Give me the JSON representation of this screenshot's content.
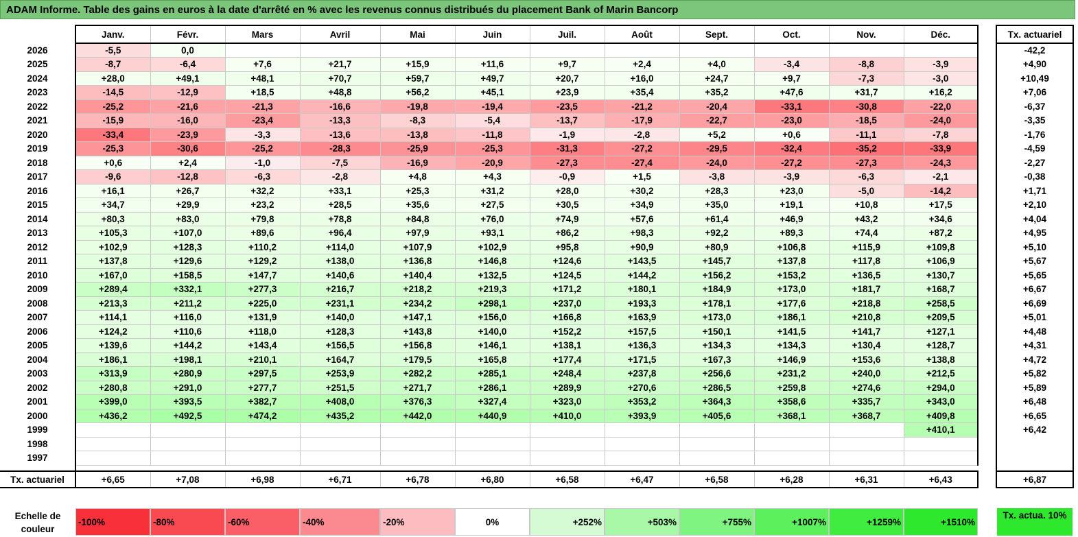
{
  "title": "ADAM Informe. Table des gains en euros à la date d'arrêté en % avec les revenus connus distribués du placement Bank of Marin Bancorp",
  "months": [
    "Janv.",
    "Févr.",
    "Mars",
    "Avril",
    "Mai",
    "Juin",
    "Juil.",
    "Août",
    "Sept.",
    "Oct.",
    "Nov.",
    "Déc."
  ],
  "actuarial_header": "Tx. actuariel",
  "total_label": "Tx. actuariel",
  "rows": [
    {
      "year": "2026",
      "values": [
        "-5,5",
        "0,0",
        "",
        "",
        "",
        "",
        "",
        "",
        "",
        "",
        "",
        ""
      ],
      "rate": "-42,2"
    },
    {
      "year": "2025",
      "values": [
        "-8,7",
        "-6,4",
        "+7,6",
        "+21,7",
        "+15,9",
        "+11,6",
        "+9,7",
        "+2,4",
        "+4,0",
        "-3,4",
        "-8,8",
        "-3,9"
      ],
      "rate": "+4,90"
    },
    {
      "year": "2024",
      "values": [
        "+28,0",
        "+49,1",
        "+48,1",
        "+70,7",
        "+59,7",
        "+49,7",
        "+20,7",
        "+16,0",
        "+24,7",
        "+9,7",
        "-7,3",
        "-3,0"
      ],
      "rate": "+10,49"
    },
    {
      "year": "2023",
      "values": [
        "-14,5",
        "-12,9",
        "+18,5",
        "+48,8",
        "+56,2",
        "+45,1",
        "+23,9",
        "+35,4",
        "+35,2",
        "+47,6",
        "+31,7",
        "+16,2"
      ],
      "rate": "+7,06"
    },
    {
      "year": "2022",
      "values": [
        "-25,2",
        "-21,6",
        "-21,3",
        "-16,6",
        "-19,8",
        "-19,4",
        "-23,5",
        "-21,2",
        "-20,4",
        "-33,1",
        "-30,8",
        "-22,0"
      ],
      "rate": "-6,37"
    },
    {
      "year": "2021",
      "values": [
        "-15,9",
        "-16,0",
        "-23,4",
        "-13,3",
        "-8,3",
        "-5,4",
        "-13,7",
        "-17,9",
        "-22,7",
        "-23,0",
        "-18,5",
        "-24,0"
      ],
      "rate": "-3,35"
    },
    {
      "year": "2020",
      "values": [
        "-33,4",
        "-23,9",
        "-3,3",
        "-13,6",
        "-13,8",
        "-11,8",
        "-1,9",
        "-2,8",
        "+5,2",
        "+0,6",
        "-11,1",
        "-7,8"
      ],
      "rate": "-1,76"
    },
    {
      "year": "2019",
      "values": [
        "-25,3",
        "-30,6",
        "-25,2",
        "-28,3",
        "-25,9",
        "-25,3",
        "-31,3",
        "-27,2",
        "-29,5",
        "-32,4",
        "-35,2",
        "-33,9"
      ],
      "rate": "-4,59"
    },
    {
      "year": "2018",
      "values": [
        "+0,6",
        "+2,4",
        "-1,0",
        "-7,5",
        "-16,9",
        "-20,9",
        "-27,3",
        "-27,4",
        "-24,0",
        "-27,2",
        "-27,3",
        "-24,3"
      ],
      "rate": "-2,27"
    },
    {
      "year": "2017",
      "values": [
        "-9,6",
        "-12,8",
        "-6,3",
        "-2,8",
        "+4,8",
        "+4,3",
        "-0,9",
        "+1,5",
        "-3,8",
        "-3,9",
        "-6,3",
        "-2,1"
      ],
      "rate": "-0,38"
    },
    {
      "year": "2016",
      "values": [
        "+16,1",
        "+26,7",
        "+32,2",
        "+33,1",
        "+25,3",
        "+31,2",
        "+28,0",
        "+30,2",
        "+28,3",
        "+23,0",
        "-5,0",
        "-14,2"
      ],
      "rate": "+1,71"
    },
    {
      "year": "2015",
      "values": [
        "+34,7",
        "+29,9",
        "+23,2",
        "+28,5",
        "+35,6",
        "+27,5",
        "+30,5",
        "+34,9",
        "+35,0",
        "+19,1",
        "+10,8",
        "+17,5"
      ],
      "rate": "+2,10"
    },
    {
      "year": "2014",
      "values": [
        "+80,3",
        "+83,0",
        "+79,8",
        "+78,8",
        "+84,8",
        "+76,0",
        "+74,9",
        "+57,6",
        "+61,4",
        "+46,9",
        "+43,2",
        "+34,6"
      ],
      "rate": "+4,04"
    },
    {
      "year": "2013",
      "values": [
        "+105,3",
        "+107,0",
        "+89,6",
        "+96,4",
        "+97,9",
        "+93,1",
        "+86,2",
        "+98,3",
        "+92,2",
        "+89,3",
        "+74,4",
        "+87,2"
      ],
      "rate": "+4,95"
    },
    {
      "year": "2012",
      "values": [
        "+102,9",
        "+128,3",
        "+110,2",
        "+114,0",
        "+107,9",
        "+102,9",
        "+95,8",
        "+90,9",
        "+80,9",
        "+106,8",
        "+115,9",
        "+109,8"
      ],
      "rate": "+5,10"
    },
    {
      "year": "2011",
      "values": [
        "+137,8",
        "+129,6",
        "+129,2",
        "+138,0",
        "+136,8",
        "+146,8",
        "+124,6",
        "+143,5",
        "+145,7",
        "+137,8",
        "+117,8",
        "+106,9"
      ],
      "rate": "+5,67"
    },
    {
      "year": "2010",
      "values": [
        "+167,0",
        "+158,5",
        "+147,7",
        "+140,6",
        "+140,4",
        "+132,5",
        "+124,5",
        "+144,2",
        "+156,2",
        "+153,2",
        "+136,5",
        "+130,7"
      ],
      "rate": "+5,65"
    },
    {
      "year": "2009",
      "values": [
        "+289,4",
        "+332,1",
        "+277,3",
        "+216,7",
        "+218,2",
        "+219,3",
        "+171,2",
        "+180,1",
        "+184,9",
        "+173,0",
        "+181,7",
        "+168,7"
      ],
      "rate": "+6,67"
    },
    {
      "year": "2008",
      "values": [
        "+213,3",
        "+211,2",
        "+225,0",
        "+231,1",
        "+234,2",
        "+298,1",
        "+237,0",
        "+193,3",
        "+178,1",
        "+177,6",
        "+218,8",
        "+258,5"
      ],
      "rate": "+6,69"
    },
    {
      "year": "2007",
      "values": [
        "+114,1",
        "+116,0",
        "+131,9",
        "+140,0",
        "+147,1",
        "+156,0",
        "+166,8",
        "+163,9",
        "+173,0",
        "+186,1",
        "+210,8",
        "+209,5"
      ],
      "rate": "+5,01"
    },
    {
      "year": "2006",
      "values": [
        "+124,2",
        "+110,6",
        "+118,0",
        "+128,3",
        "+143,8",
        "+140,0",
        "+152,2",
        "+157,5",
        "+150,1",
        "+141,5",
        "+141,7",
        "+127,1"
      ],
      "rate": "+4,48"
    },
    {
      "year": "2005",
      "values": [
        "+139,6",
        "+144,2",
        "+143,4",
        "+156,5",
        "+156,8",
        "+146,1",
        "+138,1",
        "+136,3",
        "+134,3",
        "+134,3",
        "+130,4",
        "+128,7"
      ],
      "rate": "+4,31"
    },
    {
      "year": "2004",
      "values": [
        "+186,1",
        "+198,1",
        "+210,1",
        "+164,7",
        "+179,5",
        "+165,8",
        "+177,4",
        "+171,5",
        "+167,3",
        "+146,9",
        "+153,6",
        "+138,8"
      ],
      "rate": "+4,72"
    },
    {
      "year": "2003",
      "values": [
        "+313,9",
        "+280,9",
        "+297,5",
        "+253,9",
        "+282,2",
        "+285,1",
        "+248,4",
        "+237,8",
        "+256,6",
        "+231,2",
        "+240,0",
        "+212,5"
      ],
      "rate": "+5,82"
    },
    {
      "year": "2002",
      "values": [
        "+280,8",
        "+291,0",
        "+277,7",
        "+251,5",
        "+271,7",
        "+286,1",
        "+289,9",
        "+270,6",
        "+286,5",
        "+259,8",
        "+274,6",
        "+294,0"
      ],
      "rate": "+5,89"
    },
    {
      "year": "2001",
      "values": [
        "+399,0",
        "+393,5",
        "+382,7",
        "+408,0",
        "+376,3",
        "+327,4",
        "+323,0",
        "+353,2",
        "+364,3",
        "+358,6",
        "+335,7",
        "+343,0"
      ],
      "rate": "+6,48"
    },
    {
      "year": "2000",
      "values": [
        "+436,2",
        "+492,5",
        "+474,2",
        "+435,2",
        "+442,0",
        "+440,9",
        "+410,0",
        "+393,9",
        "+405,6",
        "+368,1",
        "+368,7",
        "+409,8"
      ],
      "rate": "+6,65"
    },
    {
      "year": "1999",
      "values": [
        "",
        "",
        "",
        "",
        "",
        "",
        "",
        "",
        "",
        "",
        "",
        "+410,1"
      ],
      "rate": "+6,42"
    },
    {
      "year": "1998",
      "values": [
        "",
        "",
        "",
        "",
        "",
        "",
        "",
        "",
        "",
        "",
        "",
        ""
      ],
      "rate": ""
    },
    {
      "year": "1997",
      "values": [
        "",
        "",
        "",
        "",
        "",
        "",
        "",
        "",
        "",
        "",
        "",
        ""
      ],
      "rate": ""
    }
  ],
  "totals": [
    "+6,65",
    "+7,08",
    "+6,98",
    "+6,71",
    "+6,78",
    "+6,80",
    "+6,58",
    "+6,47",
    "+6,58",
    "+6,28",
    "+6,31",
    "+6,43"
  ],
  "total_rate": "+6,87",
  "legend": {
    "label": "Echelle de couleur",
    "steps": [
      {
        "text": "-100%",
        "color": "#f8303a"
      },
      {
        "text": "-80%",
        "color": "#f94a52"
      },
      {
        "text": "-60%",
        "color": "#fa5e66"
      },
      {
        "text": "-40%",
        "color": "#fb8a90"
      },
      {
        "text": "-20%",
        "color": "#fcbcc0"
      },
      {
        "text": "0%",
        "color": "#ffffff"
      },
      {
        "text": "+252%",
        "color": "#d4fbd4"
      },
      {
        "text": "+503%",
        "color": "#a8f8a8"
      },
      {
        "text": "+755%",
        "color": "#80f480"
      },
      {
        "text": "+1007%",
        "color": "#5cf05c"
      },
      {
        "text": "+1259%",
        "color": "#40ec40"
      },
      {
        "text": "+1510%",
        "color": "#2ee82e"
      }
    ],
    "side_label": "Tx. actua. 10%",
    "side_color": "#2ee82e"
  }
}
